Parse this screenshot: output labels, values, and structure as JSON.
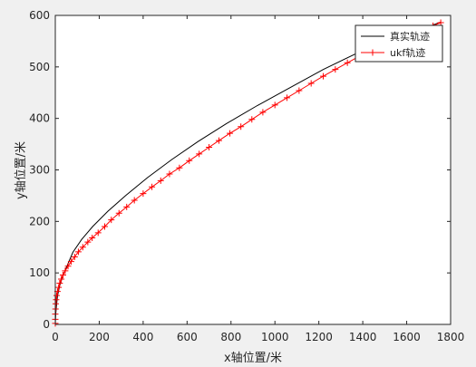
{
  "chart_data": {
    "type": "line",
    "title": "",
    "xlabel": "x轴位置/米",
    "ylabel": "y轴位置/米",
    "xlim": [
      0,
      1800
    ],
    "ylim": [
      0,
      600
    ],
    "xticks": [
      0,
      200,
      400,
      600,
      800,
      1000,
      1200,
      1400,
      1600,
      1800
    ],
    "yticks": [
      0,
      100,
      200,
      300,
      400,
      500,
      600
    ],
    "grid": false,
    "legend_position": "top-right",
    "background": "#ffffff",
    "figure_background": "#f0f0f0",
    "series": [
      {
        "name": "真实轨迹",
        "color": "#000000",
        "marker": "none",
        "points": [
          [
            0,
            0
          ],
          [
            2,
            20
          ],
          [
            5,
            35
          ],
          [
            10,
            55
          ],
          [
            20,
            75
          ],
          [
            35,
            95
          ],
          [
            55,
            115
          ],
          [
            80,
            140
          ],
          [
            120,
            165
          ],
          [
            170,
            190
          ],
          [
            240,
            220
          ],
          [
            320,
            250
          ],
          [
            420,
            285
          ],
          [
            530,
            320
          ],
          [
            650,
            355
          ],
          [
            780,
            390
          ],
          [
            920,
            425
          ],
          [
            1070,
            460
          ],
          [
            1220,
            495
          ],
          [
            1380,
            528
          ],
          [
            1540,
            555
          ],
          [
            1680,
            575
          ],
          [
            1755,
            587
          ]
        ]
      },
      {
        "name": "ukf轨迹",
        "color": "#ff0000",
        "marker": "+",
        "points": [
          [
            0,
            2
          ],
          [
            0,
            10
          ],
          [
            0,
            20
          ],
          [
            1,
            30
          ],
          [
            2,
            40
          ],
          [
            4,
            48
          ],
          [
            6,
            56
          ],
          [
            10,
            64
          ],
          [
            15,
            72
          ],
          [
            20,
            80
          ],
          [
            27,
            88
          ],
          [
            35,
            96
          ],
          [
            45,
            104
          ],
          [
            58,
            113
          ],
          [
            72,
            122
          ],
          [
            88,
            131
          ],
          [
            105,
            141
          ],
          [
            125,
            150
          ],
          [
            148,
            160
          ],
          [
            168,
            168
          ],
          [
            195,
            178
          ],
          [
            225,
            190
          ],
          [
            255,
            203
          ],
          [
            290,
            216
          ],
          [
            325,
            228
          ],
          [
            360,
            241
          ],
          [
            400,
            254
          ],
          [
            440,
            267
          ],
          [
            480,
            279
          ],
          [
            520,
            292
          ],
          [
            565,
            304
          ],
          [
            610,
            318
          ],
          [
            655,
            331
          ],
          [
            700,
            344
          ],
          [
            745,
            357
          ],
          [
            795,
            371
          ],
          [
            845,
            384
          ],
          [
            895,
            398
          ],
          [
            945,
            412
          ],
          [
            1000,
            426
          ],
          [
            1055,
            440
          ],
          [
            1110,
            454
          ],
          [
            1165,
            468
          ],
          [
            1220,
            482
          ],
          [
            1275,
            495
          ],
          [
            1330,
            508
          ],
          [
            1385,
            521
          ],
          [
            1440,
            534
          ],
          [
            1500,
            546
          ],
          [
            1560,
            557
          ],
          [
            1620,
            566
          ],
          [
            1680,
            574
          ],
          [
            1720,
            580
          ],
          [
            1755,
            586
          ]
        ]
      }
    ]
  }
}
